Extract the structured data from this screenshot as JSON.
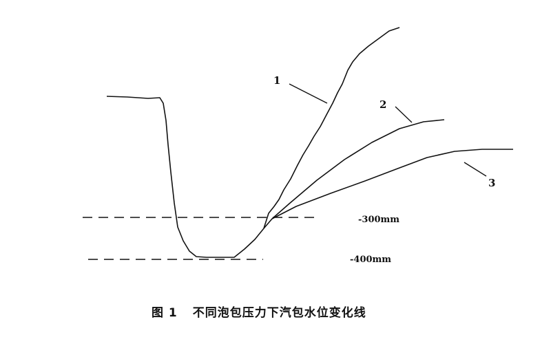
{
  "curve_labels": [
    "1",
    "2",
    "3"
  ],
  "reference_lines": [
    {
      "label": "-300mm"
    },
    {
      "label": "-400mm"
    }
  ],
  "caption": {
    "number": "图 1",
    "title": "不同泡包压力下汽包水位变化线"
  }
}
